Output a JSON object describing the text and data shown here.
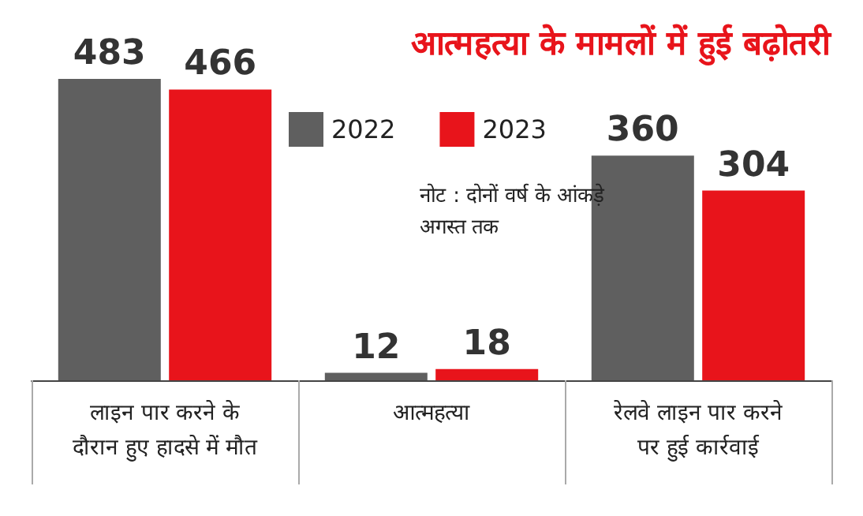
{
  "chart_data": {
    "type": "bar",
    "title": "आत्महत्या के मामलों में हुई बढ़ोतरी",
    "categories": [
      "लाइन पार करने के\nदौरान हुए हादसे में मौत",
      "आत्महत्या",
      "रेलवे लाइन पार करने\nपर हुई कार्रवाई"
    ],
    "series": [
      {
        "name": "2022",
        "color": "#5f5f5f",
        "values": [
          483,
          12,
          360
        ]
      },
      {
        "name": "2023",
        "color": "#e8141b",
        "values": [
          466,
          18,
          304
        ]
      }
    ],
    "data_labels": true,
    "legend": "top",
    "annotations": [
      "नोट : दोनों वर्ष के आंकड़े\nअगस्त तक"
    ]
  }
}
